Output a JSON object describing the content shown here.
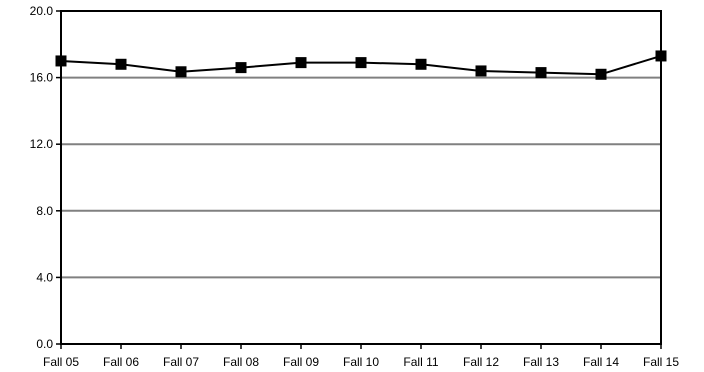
{
  "chart_data": {
    "type": "line",
    "categories": [
      "Fall 05",
      "Fall 06",
      "Fall 07",
      "Fall 08",
      "Fall 09",
      "Fall 10",
      "Fall 11",
      "Fall 12",
      "Fall 13",
      "Fall 14",
      "Fall 15"
    ],
    "series": [
      {
        "values": [
          17.0,
          16.8,
          16.35,
          16.6,
          16.9,
          16.9,
          16.8,
          16.4,
          16.3,
          16.2,
          17.3
        ]
      }
    ],
    "ylim": [
      0,
      20
    ],
    "yticks": [
      0.0,
      4.0,
      8.0,
      12.0,
      16.0,
      20.0
    ],
    "ytick_labels": [
      "0.0",
      "4.0",
      "8.0",
      "12.0",
      "16.0",
      "20.0"
    ],
    "title": "",
    "xlabel": "",
    "ylabel": "",
    "grid": true,
    "legend": "none",
    "colors": {
      "line": "#000000",
      "marker": "#000000",
      "grid": "#808080",
      "axis": "#000000"
    }
  }
}
